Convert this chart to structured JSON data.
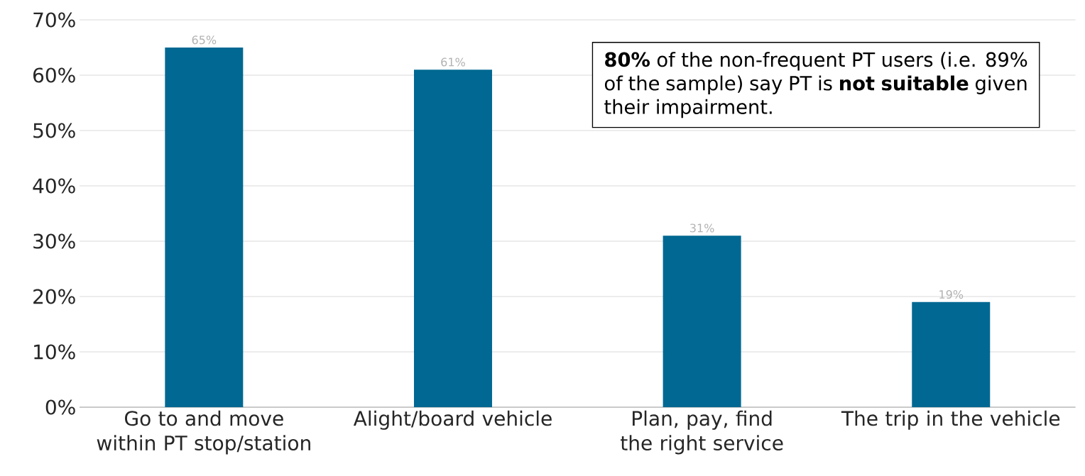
{
  "chart_data": {
    "type": "bar",
    "categories": [
      "Go to and move within PT stop/station",
      "Alight/board vehicle",
      "Plan, pay, find the right service",
      "The trip in the vehicle"
    ],
    "values": [
      65,
      61,
      31,
      19
    ],
    "value_labels": [
      "65%",
      "61%",
      "31%",
      "19%"
    ],
    "color": "#006892",
    "ylim": [
      0,
      70
    ],
    "yticks": [
      {
        "value": 0,
        "label": "0%"
      },
      {
        "value": 10,
        "label": "10%"
      },
      {
        "value": 20,
        "label": "20%"
      },
      {
        "value": 30,
        "label": "30%"
      },
      {
        "value": 40,
        "label": "40%"
      },
      {
        "value": 50,
        "label": "50%"
      },
      {
        "value": 60,
        "label": "60%"
      },
      {
        "value": 70,
        "label": "70%"
      }
    ],
    "grid": "y",
    "annotations": [
      "**80%** of the non-frequent PT users (i.e. 89% of the sample) say PT is **not suitable** given their impairment."
    ]
  }
}
